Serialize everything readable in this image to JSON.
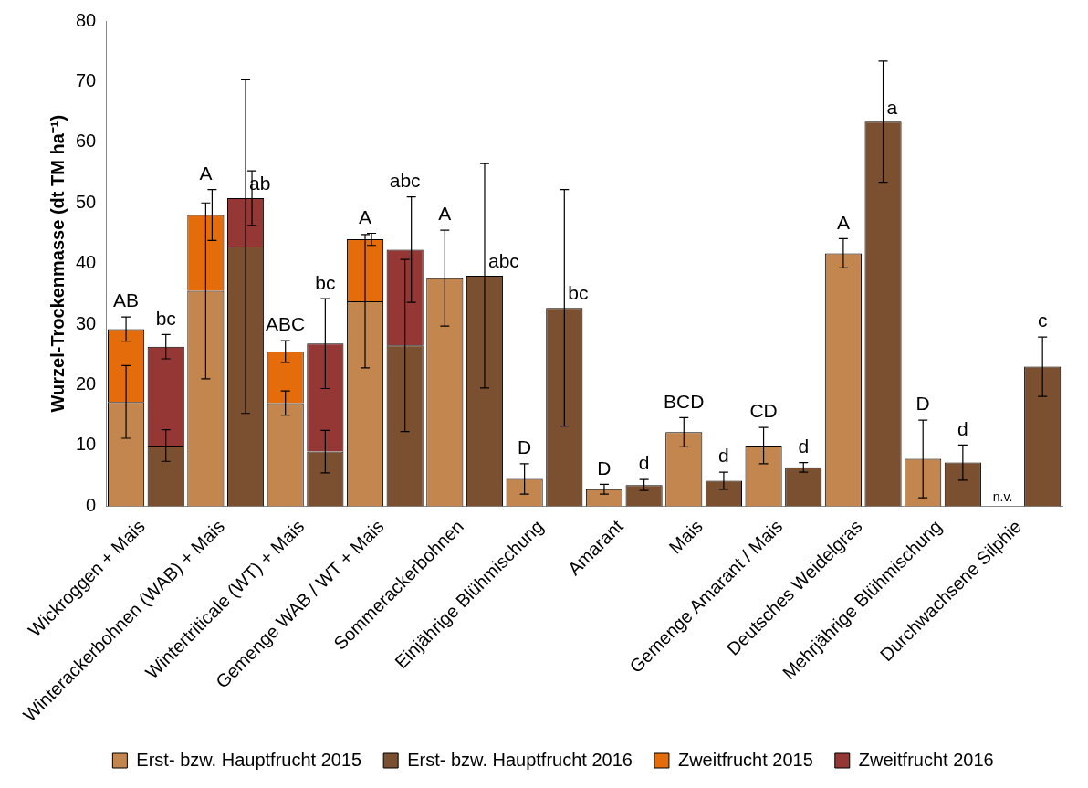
{
  "chart_data": {
    "type": "bar",
    "stacked": true,
    "ylabel": "Wurzel-Trockenmasse (dt TM ha⁻¹)",
    "categories": [
      "Wickroggen + Mais",
      null,
      "Winterackerbohnen (WAB) + Mais",
      null,
      "Wintertriticale (WT) + Mais",
      null,
      "Gemenge WAB / WT + Mais",
      null,
      "Sommerackerbohnen",
      null,
      "Einjährige Blühmischung",
      null,
      "Amarant",
      null,
      "Mais",
      null,
      "Gemenge Amarant / Mais",
      null,
      "Deutsches Weidelgras",
      null,
      "Mehrjährige Blühmischung",
      null,
      "Durchwachsene Silphie",
      null
    ],
    "ylim": [
      0,
      80
    ],
    "yticks": [
      0,
      10,
      20,
      30,
      40,
      50,
      60,
      70,
      80
    ],
    "grid": false,
    "legend": "bottom",
    "series": [
      {
        "name": "Erst- bzw. Hauptfrucht 2015",
        "color": "#c3864f",
        "values": [
          17.2,
          null,
          35.5,
          null,
          17,
          null,
          33.8,
          null,
          37.6,
          null,
          4.5,
          null,
          2.8,
          null,
          12.2,
          null,
          10,
          null,
          41.7,
          null,
          7.8,
          null,
          null,
          null
        ],
        "errors": [
          6,
          null,
          14.5,
          null,
          2,
          null,
          11,
          null,
          7.9,
          null,
          2.5,
          null,
          0.8,
          null,
          2.4,
          null,
          3,
          null,
          2.4,
          null,
          6.4,
          null,
          null,
          null
        ],
        "value_labels": [
          null,
          null,
          null,
          null,
          null,
          null,
          null,
          null,
          "A",
          null,
          "D",
          null,
          "D",
          null,
          "BCD",
          null,
          "CD",
          null,
          "A",
          null,
          "D",
          null,
          "n.v.",
          null
        ]
      },
      {
        "name": "Erst- bzw. Hauptfrucht 2016",
        "color": "#7b5031",
        "values": [
          null,
          10,
          null,
          42.8,
          null,
          9,
          null,
          26.5,
          null,
          38,
          null,
          32.7,
          null,
          3.5,
          null,
          4.2,
          null,
          6.4,
          null,
          63.4,
          null,
          7.2,
          null,
          23
        ],
        "errors": [
          null,
          2.6,
          null,
          27.5,
          null,
          3.5,
          null,
          14.2,
          null,
          18.5,
          null,
          19.5,
          null,
          0.9,
          null,
          1.4,
          null,
          0.8,
          null,
          10,
          null,
          2.9,
          null,
          4.9
        ],
        "value_labels": [
          null,
          null,
          null,
          null,
          null,
          null,
          null,
          null,
          null,
          "abc",
          null,
          "bc",
          null,
          "d",
          null,
          "d",
          null,
          "d",
          null,
          "a",
          null,
          "d",
          null,
          "c"
        ]
      },
      {
        "name": "Zweitfrucht 2015",
        "color": "#e46c0a",
        "values": [
          12,
          null,
          12.5,
          null,
          8.5,
          null,
          10.2,
          null,
          null,
          null,
          null,
          null,
          null,
          null,
          null,
          null,
          null,
          null,
          null,
          null,
          null,
          null,
          null,
          null
        ],
        "errors": [
          2,
          null,
          4.2,
          null,
          1.8,
          null,
          1,
          null,
          null,
          null,
          null,
          null,
          null,
          null,
          null,
          null,
          null,
          null,
          null,
          null,
          null,
          null,
          null,
          null
        ],
        "value_labels": [
          "AB",
          null,
          "A",
          null,
          "ABC",
          null,
          "A",
          null,
          null,
          null,
          null,
          null,
          null,
          null,
          null,
          null,
          null,
          null,
          null,
          null,
          null,
          null,
          null,
          null
        ]
      },
      {
        "name": "Zweitfrucht 2016",
        "color": "#953735",
        "values": [
          null,
          16.3,
          null,
          8,
          null,
          17.8,
          null,
          15.8,
          null,
          null,
          null,
          null,
          null,
          null,
          null,
          null,
          null,
          null,
          null,
          null,
          null,
          null,
          null,
          null
        ],
        "errors": [
          null,
          2,
          null,
          4.5,
          null,
          7.4,
          null,
          8.7,
          null,
          null,
          null,
          null,
          null,
          null,
          null,
          null,
          null,
          null,
          null,
          null,
          null,
          null,
          null,
          null
        ],
        "value_labels": [
          null,
          "bc",
          null,
          "ab",
          null,
          "bc",
          null,
          "abc",
          null,
          null,
          null,
          null,
          null,
          null,
          null,
          null,
          null,
          null,
          null,
          null,
          null,
          null,
          null,
          null
        ]
      }
    ]
  }
}
